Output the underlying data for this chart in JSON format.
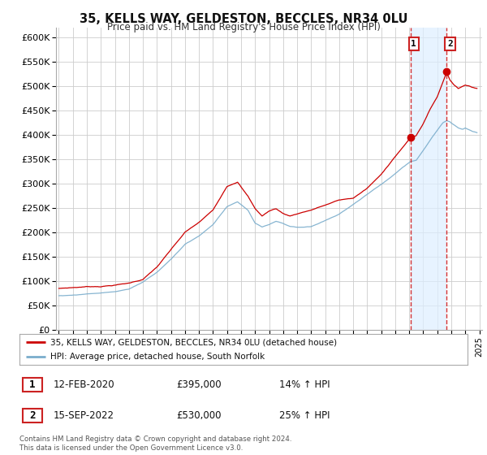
{
  "title": "35, KELLS WAY, GELDESTON, BECCLES, NR34 0LU",
  "subtitle": "Price paid vs. HM Land Registry's House Price Index (HPI)",
  "legend_line1": "35, KELLS WAY, GELDESTON, BECCLES, NR34 0LU (detached house)",
  "legend_line2": "HPI: Average price, detached house, South Norfolk",
  "annotation1_label": "1",
  "annotation1_date": "12-FEB-2020",
  "annotation1_price": "£395,000",
  "annotation1_hpi": "14% ↑ HPI",
  "annotation2_label": "2",
  "annotation2_date": "15-SEP-2022",
  "annotation2_price": "£530,000",
  "annotation2_hpi": "25% ↑ HPI",
  "footer": "Contains HM Land Registry data © Crown copyright and database right 2024.\nThis data is licensed under the Open Government Licence v3.0.",
  "line1_color": "#cc0000",
  "line2_color": "#7aadcc",
  "vline1_date": 2020.083,
  "vline2_date": 2022.667,
  "marker1_value": 395000,
  "marker2_value": 530000,
  "ylim": [
    0,
    620000
  ],
  "xlim_start": 1994.8,
  "xlim_end": 2025.2,
  "background_color": "#ffffff",
  "plot_bg_color": "#ffffff",
  "grid_color": "#cccccc",
  "shade_color": "#ddeeff"
}
